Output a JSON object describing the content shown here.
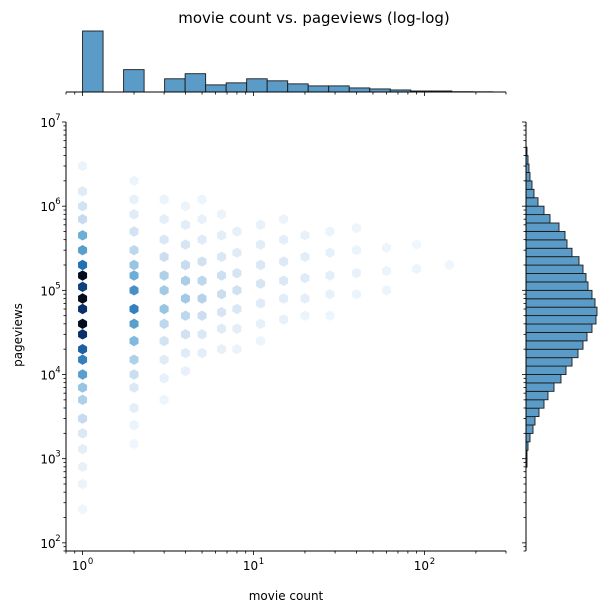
{
  "chart_data": {
    "type": "hexbin",
    "title": "movie count vs. pageviews (log-log)",
    "xlabel": "movie count",
    "ylabel": "pageviews",
    "x_scale": "log",
    "y_scale": "log",
    "xlim": [
      0.8,
      300
    ],
    "ylim": [
      80,
      10000000
    ],
    "x_ticks": [
      1,
      10,
      100
    ],
    "y_ticks": [
      100,
      1000,
      10000,
      100000,
      1000000,
      10000000
    ],
    "colormap": [
      "#f7fbff",
      "#c6dbef",
      "#6baed6",
      "#2171b5",
      "#08306b",
      "#000000"
    ],
    "bar_color": "#5b9bc8",
    "hexbin_columns": [
      {
        "x": 1,
        "cells": [
          [
            150000,
            0.95
          ],
          [
            80000,
            0.95
          ],
          [
            40000,
            0.95
          ],
          [
            110000,
            0.75
          ],
          [
            60000,
            0.8
          ],
          [
            30000,
            0.8
          ],
          [
            20000,
            0.65
          ],
          [
            15000,
            0.55
          ],
          [
            200000,
            0.6
          ],
          [
            300000,
            0.45
          ],
          [
            450000,
            0.4
          ],
          [
            10000,
            0.45
          ],
          [
            7000,
            0.3
          ],
          [
            5000,
            0.25
          ],
          [
            3000,
            0.2
          ],
          [
            700000,
            0.2
          ],
          [
            1000000,
            0.15
          ],
          [
            1500000,
            0.1
          ],
          [
            2000,
            0.12
          ],
          [
            1300,
            0.08
          ],
          [
            800,
            0.06
          ],
          [
            500,
            0.05
          ],
          [
            3000000,
            0.05
          ],
          [
            250,
            0.03
          ]
        ]
      },
      {
        "x": 2,
        "cells": [
          [
            60000,
            0.55
          ],
          [
            100000,
            0.5
          ],
          [
            40000,
            0.45
          ],
          [
            150000,
            0.4
          ],
          [
            25000,
            0.35
          ],
          [
            200000,
            0.3
          ],
          [
            15000,
            0.25
          ],
          [
            300000,
            0.22
          ],
          [
            10000,
            0.18
          ],
          [
            500000,
            0.15
          ],
          [
            7000,
            0.12
          ],
          [
            800000,
            0.1
          ],
          [
            4000,
            0.08
          ],
          [
            1200000,
            0.06
          ],
          [
            2500,
            0.05
          ],
          [
            2000000,
            0.04
          ],
          [
            1500,
            0.03
          ]
        ]
      },
      {
        "x": 3,
        "cells": [
          [
            60000,
            0.3
          ],
          [
            100000,
            0.28
          ],
          [
            150000,
            0.25
          ],
          [
            40000,
            0.22
          ],
          [
            250000,
            0.18
          ],
          [
            25000,
            0.15
          ],
          [
            400000,
            0.12
          ],
          [
            15000,
            0.1
          ],
          [
            700000,
            0.08
          ],
          [
            9000,
            0.06
          ],
          [
            1200000,
            0.05
          ],
          [
            5000,
            0.04
          ]
        ]
      },
      {
        "x": 4,
        "cells": [
          [
            80000,
            0.28
          ],
          [
            130000,
            0.26
          ],
          [
            50000,
            0.22
          ],
          [
            200000,
            0.2
          ],
          [
            30000,
            0.16
          ],
          [
            350000,
            0.14
          ],
          [
            18000,
            0.1
          ],
          [
            600000,
            0.09
          ],
          [
            11000,
            0.06
          ],
          [
            1000000,
            0.05
          ]
        ]
      },
      {
        "x": 5,
        "cells": [
          [
            80000,
            0.24
          ],
          [
            130000,
            0.22
          ],
          [
            50000,
            0.18
          ],
          [
            220000,
            0.16
          ],
          [
            30000,
            0.12
          ],
          [
            400000,
            0.1
          ],
          [
            18000,
            0.08
          ],
          [
            700000,
            0.06
          ],
          [
            1200000,
            0.04
          ]
        ]
      },
      {
        "x": 6.5,
        "cells": [
          [
            90000,
            0.18
          ],
          [
            150000,
            0.17
          ],
          [
            55000,
            0.14
          ],
          [
            250000,
            0.12
          ],
          [
            35000,
            0.1
          ],
          [
            450000,
            0.08
          ],
          [
            20000,
            0.06
          ],
          [
            800000,
            0.05
          ]
        ]
      },
      {
        "x": 8,
        "cells": [
          [
            100000,
            0.16
          ],
          [
            160000,
            0.14
          ],
          [
            60000,
            0.12
          ],
          [
            280000,
            0.1
          ],
          [
            35000,
            0.08
          ],
          [
            500000,
            0.07
          ],
          [
            20000,
            0.05
          ]
        ]
      },
      {
        "x": 11,
        "cells": [
          [
            120000,
            0.14
          ],
          [
            200000,
            0.12
          ],
          [
            70000,
            0.1
          ],
          [
            350000,
            0.09
          ],
          [
            40000,
            0.07
          ],
          [
            600000,
            0.06
          ],
          [
            25000,
            0.04
          ]
        ]
      },
      {
        "x": 15,
        "cells": [
          [
            130000,
            0.12
          ],
          [
            220000,
            0.11
          ],
          [
            80000,
            0.09
          ],
          [
            400000,
            0.08
          ],
          [
            45000,
            0.06
          ],
          [
            700000,
            0.05
          ]
        ]
      },
      {
        "x": 20,
        "cells": [
          [
            140000,
            0.1
          ],
          [
            250000,
            0.09
          ],
          [
            80000,
            0.08
          ],
          [
            450000,
            0.06
          ],
          [
            50000,
            0.05
          ]
        ]
      },
      {
        "x": 28,
        "cells": [
          [
            150000,
            0.08
          ],
          [
            280000,
            0.07
          ],
          [
            90000,
            0.06
          ],
          [
            500000,
            0.05
          ],
          [
            50000,
            0.04
          ]
        ]
      },
      {
        "x": 40,
        "cells": [
          [
            160000,
            0.06
          ],
          [
            300000,
            0.05
          ],
          [
            90000,
            0.05
          ],
          [
            550000,
            0.04
          ]
        ]
      },
      {
        "x": 60,
        "cells": [
          [
            170000,
            0.05
          ],
          [
            320000,
            0.04
          ],
          [
            100000,
            0.04
          ]
        ]
      },
      {
        "x": 90,
        "cells": [
          [
            180000,
            0.04
          ],
          [
            350000,
            0.03
          ]
        ]
      },
      {
        "x": 140,
        "cells": [
          [
            200000,
            0.03
          ]
        ]
      }
    ],
    "x_marginal_histogram": {
      "log_bins": [
        0,
        0.12,
        0.24,
        0.36,
        0.48,
        0.6,
        0.72,
        0.84,
        0.96,
        1.08,
        1.2,
        1.32,
        1.44,
        1.56,
        1.68,
        1.8,
        1.92,
        2.04,
        2.16,
        2.28,
        2.4
      ],
      "counts": [
        60,
        0,
        22,
        0,
        13,
        18,
        7,
        9,
        13,
        11,
        8,
        6,
        6,
        4,
        3,
        2,
        1,
        1,
        0.3,
        0.2
      ]
    },
    "y_marginal_histogram": {
      "log_bins": [
        2.9,
        3.0,
        3.1,
        3.2,
        3.3,
        3.4,
        3.5,
        3.6,
        3.7,
        3.8,
        3.9,
        4.0,
        4.1,
        4.2,
        4.3,
        4.4,
        4.5,
        4.6,
        4.7,
        4.8,
        4.9,
        5.0,
        5.1,
        5.2,
        5.3,
        5.4,
        5.5,
        5.6,
        5.7,
        5.8,
        5.9,
        6.0,
        6.1,
        6.2,
        6.3,
        6.4,
        6.5,
        6.6,
        6.7
      ],
      "counts": [
        1,
        1,
        2,
        4,
        7,
        9,
        13,
        18,
        22,
        28,
        35,
        40,
        46,
        52,
        57,
        61,
        66,
        70,
        71,
        69,
        66,
        62,
        60,
        57,
        53,
        46,
        41,
        39,
        33,
        24,
        18,
        12,
        8,
        6,
        4,
        3,
        2,
        1
      ]
    }
  }
}
